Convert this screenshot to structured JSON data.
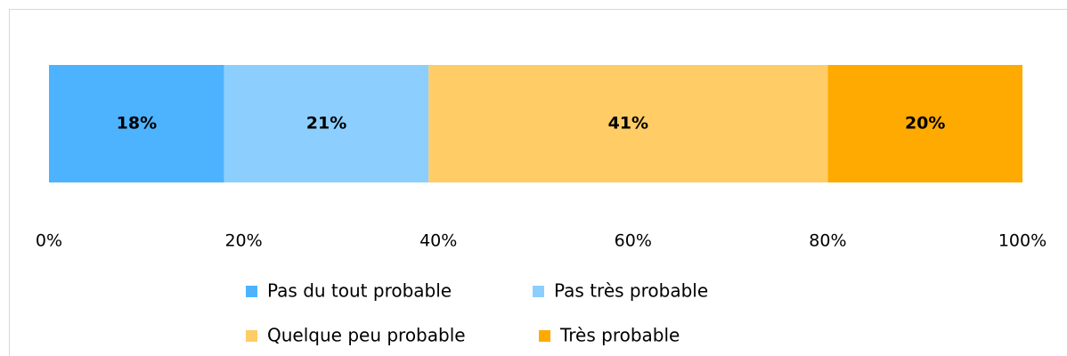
{
  "chart_data": {
    "type": "stacked_bar_horizontal",
    "series": [
      {
        "name": "Pas du tout probable",
        "color": "#4db3ff",
        "values": [
          18
        ],
        "value_labels": [
          "18%"
        ]
      },
      {
        "name": "Pas très probable",
        "color": "#8ccfff",
        "values": [
          21
        ],
        "value_labels": [
          "21%"
        ]
      },
      {
        "name": "Quelque peu probable",
        "color": "#ffcc66",
        "values": [
          41
        ],
        "value_labels": [
          "41%"
        ]
      },
      {
        "name": "Très probable",
        "color": "#ffaa00",
        "values": [
          20
        ],
        "value_labels": [
          "20%"
        ]
      }
    ],
    "xlim": [
      0,
      100
    ],
    "xticks": [
      {
        "value": 0,
        "label": "0%"
      },
      {
        "value": 20,
        "label": "20%"
      },
      {
        "value": 40,
        "label": "40%"
      },
      {
        "value": 60,
        "label": "60%"
      },
      {
        "value": 80,
        "label": "80%"
      },
      {
        "value": 100,
        "label": "100%"
      }
    ],
    "legend": "bottom"
  }
}
